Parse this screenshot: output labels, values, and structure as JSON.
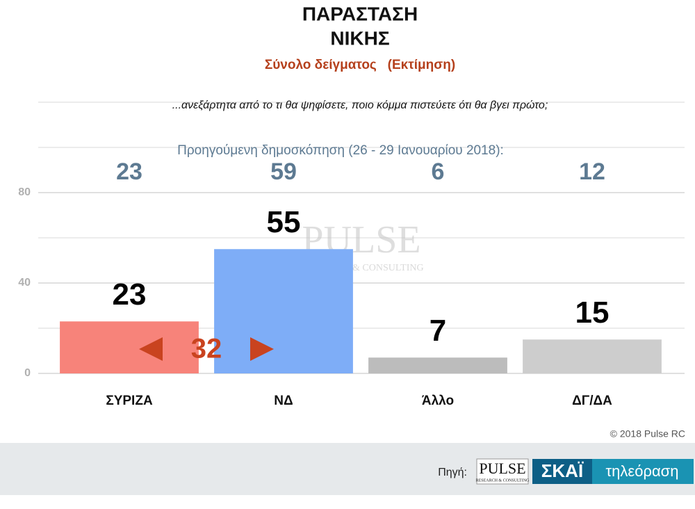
{
  "chart_data": {
    "type": "bar",
    "title": [
      "ΠΑΡΑΣΤΑΣΗ",
      "ΝΙΚΗΣ"
    ],
    "subtitle": "Σύνολο δείγματος   (Εκτίμηση)",
    "question": "...ανεξάρτητα από το τι θα ψηφίσετε, ποιο κόμμα πιστεύετε ότι θα βγει πρώτο;",
    "previous_poll": {
      "label": "Προηγούμενη δημοσκόπηση (26 - 29 Ιανουαρίου 2018):",
      "values": [
        23,
        59,
        6,
        12
      ]
    },
    "categories": [
      "ΣΥΡΙΖΑ",
      "ΝΔ",
      "Άλλο",
      "ΔΓ/ΔΑ"
    ],
    "values": [
      23,
      55,
      7,
      15
    ],
    "colors": [
      "#f7837a",
      "#7eadf7",
      "#bcbcbc",
      "#cdcdcd"
    ],
    "ylim": [
      0,
      120
    ],
    "yticks": [
      0,
      40,
      80
    ],
    "minor_gridlines": [
      20,
      60,
      100,
      120
    ],
    "grid": true,
    "gap_annotation": {
      "value": 32,
      "color": "#c9431f"
    },
    "credit": "© 2018 Pulse RC",
    "footer": {
      "source_label": "Πηγή:",
      "logo_text": "PULSE",
      "logo_subtext": "RESEARCH & CONSULTING",
      "channel": "ΣΚΑΪ",
      "channel_sub": "τηλεόραση"
    }
  }
}
